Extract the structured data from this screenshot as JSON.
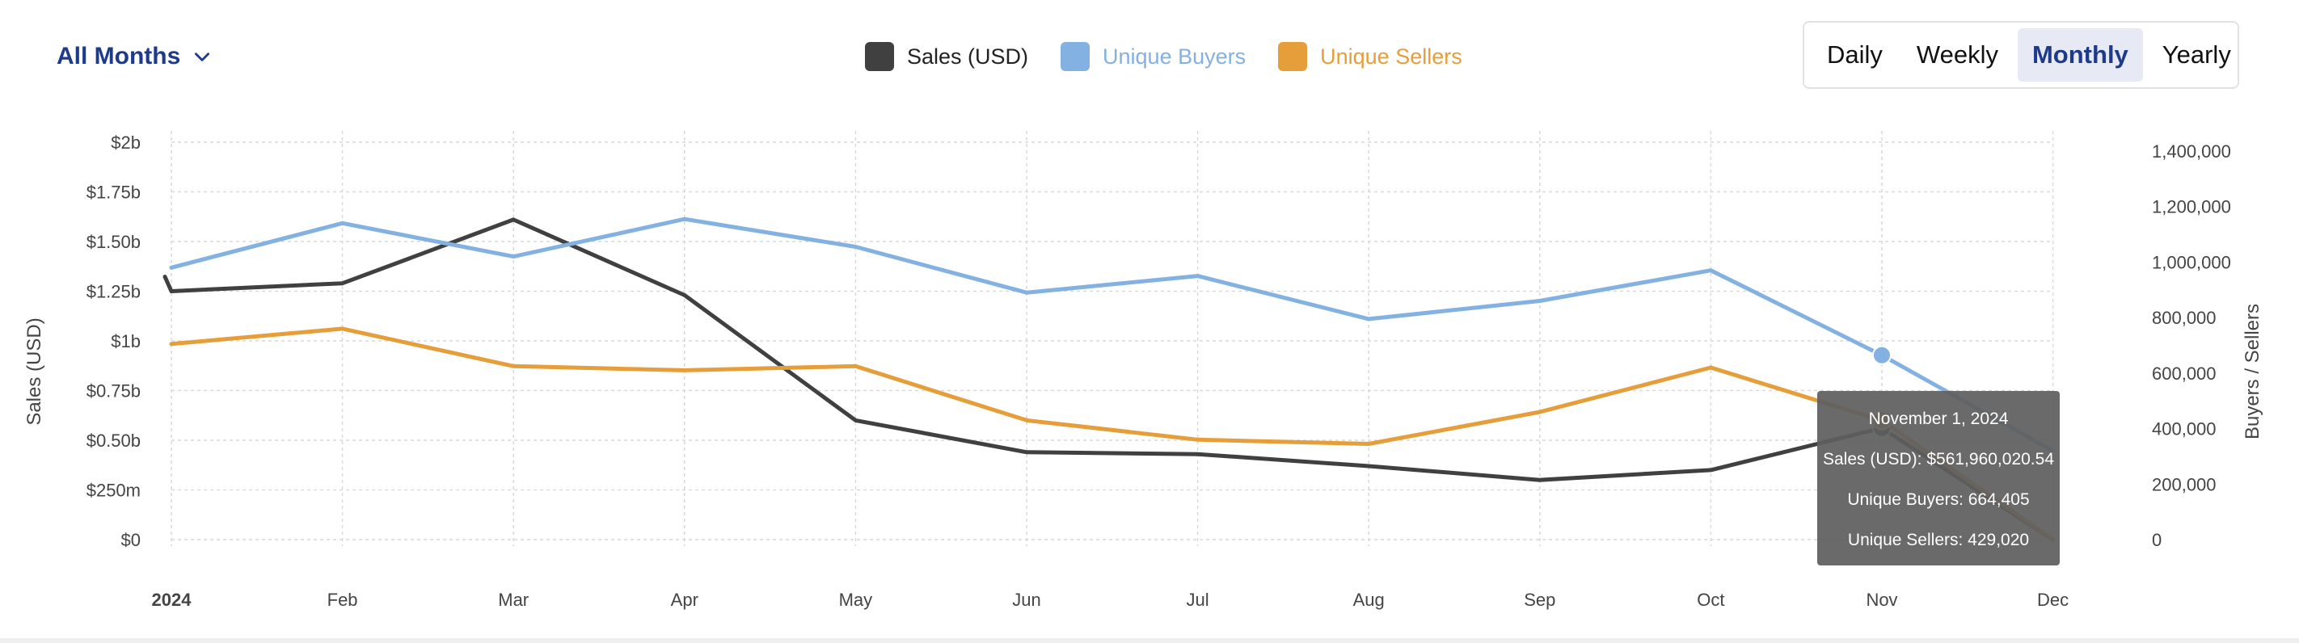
{
  "filter": {
    "label": "All Months"
  },
  "legend": [
    {
      "label": "Sales (USD)",
      "color": "#404040"
    },
    {
      "label": "Unique Buyers",
      "color": "#82b1e2"
    },
    {
      "label": "Unique Sellers",
      "color": "#e59e3a"
    }
  ],
  "periods": {
    "items": [
      "Daily",
      "Weekly",
      "Monthly",
      "Yearly"
    ],
    "selected": "Monthly"
  },
  "tooltip": {
    "date": "November 1, 2024",
    "sales": "Sales (USD): $561,960,020.54",
    "buyers": "Unique Buyers: 664,405",
    "sellers": "Unique Sellers: 429,020"
  },
  "chart_data": {
    "type": "line",
    "x": [
      "2024",
      "Feb",
      "Mar",
      "Apr",
      "May",
      "Jun",
      "Jul",
      "Aug",
      "Sep",
      "Oct",
      "Nov",
      "Dec"
    ],
    "ylabel": "Sales (USD)",
    "y2label": "Buyers / Sellers",
    "ylim": [
      0,
      2000000000
    ],
    "y2lim": [
      0,
      1400000
    ],
    "y_ticks": [
      {
        "value": 0,
        "label": "$0"
      },
      {
        "value": 250000000,
        "label": "$250m"
      },
      {
        "value": 500000000,
        "label": "$0.50b"
      },
      {
        "value": 750000000,
        "label": "$0.75b"
      },
      {
        "value": 1000000000,
        "label": "$1b"
      },
      {
        "value": 1250000000,
        "label": "$1.25b"
      },
      {
        "value": 1500000000,
        "label": "$1.50b"
      },
      {
        "value": 1750000000,
        "label": "$1.75b"
      },
      {
        "value": 2000000000,
        "label": "$2b"
      }
    ],
    "y2_ticks": [
      {
        "value": 0,
        "label": "0"
      },
      {
        "value": 200000,
        "label": "200,000"
      },
      {
        "value": 400000,
        "label": "400,000"
      },
      {
        "value": 600000,
        "label": "600,000"
      },
      {
        "value": 800000,
        "label": "800,000"
      },
      {
        "value": 1000000,
        "label": "1,000,000"
      },
      {
        "value": 1200000,
        "label": "1,200,000"
      },
      {
        "value": 1400000,
        "label": "1,400,000"
      }
    ],
    "grid": true,
    "highlight_index": 10,
    "series": [
      {
        "name": "Sales (USD)",
        "axis": "left",
        "color": "#404040",
        "values": [
          1250000000,
          1290000000,
          1610000000,
          1230000000,
          600000000,
          440000000,
          430000000,
          370000000,
          300000000,
          350000000,
          561960020.54,
          0
        ]
      },
      {
        "name": "Unique Buyers",
        "axis": "right",
        "color": "#82b1e2",
        "values": [
          980000,
          1140000,
          1020000,
          1155000,
          1055000,
          890000,
          950000,
          795000,
          860000,
          970000,
          664405,
          320000
        ]
      },
      {
        "name": "Unique Sellers",
        "axis": "right",
        "color": "#e59e3a",
        "values": [
          705000,
          760000,
          625000,
          610000,
          625000,
          430000,
          360000,
          345000,
          460000,
          620000,
          429020,
          0
        ]
      }
    ]
  }
}
